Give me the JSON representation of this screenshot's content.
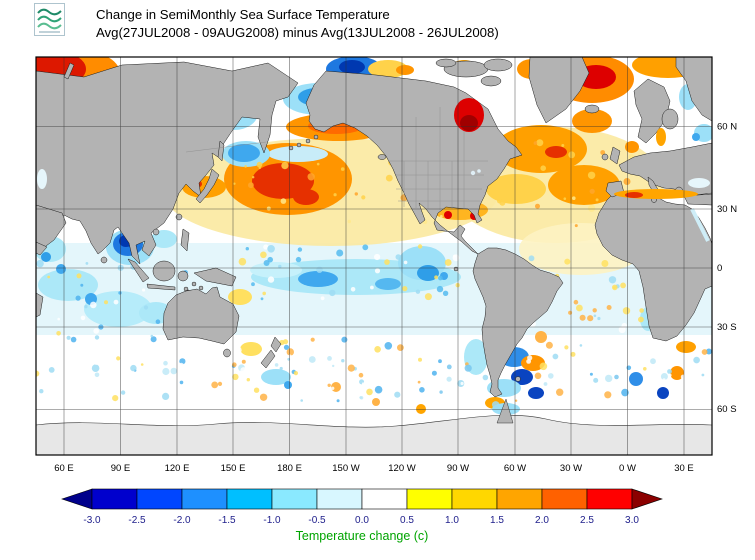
{
  "header": {
    "title_line1": "Change in SemiMonthly Sea Surface Temperature",
    "title_line2": "Avg(27JUL2008 - 09AUG2008) minus Avg(13JUL2008 - 26JUL2008)"
  },
  "map": {
    "land_color": "#b3b3b3",
    "nodata_color": "#e7e7e7",
    "lat_labels": [
      "60 N",
      "30 N",
      "0",
      "30 S",
      "60 S"
    ],
    "lon_labels": [
      "60 E",
      "90 E",
      "120 E",
      "150 E",
      "180 E",
      "150 W",
      "120 W",
      "90 W",
      "60 W",
      "30 W",
      "0 W",
      "30 E"
    ]
  },
  "colorbar": {
    "caption": "Temperature change (c)",
    "caption_color": "#00a400",
    "label_color": "#20208c",
    "labels": [
      "-3.0",
      "-2.5",
      "-2.0",
      "-1.5",
      "-1.0",
      "-0.5",
      "0.0",
      "0.5",
      "1.0",
      "1.5",
      "2.0",
      "2.5",
      "3.0"
    ],
    "left_arrow_color": "#00008b",
    "right_arrow_color": "#8b0000",
    "segment_colors": [
      "#0000cd",
      "#0046ff",
      "#1e90ff",
      "#00bfff",
      "#8ae9ff",
      "#d8f7ff",
      "#ffffff",
      "#ffff00",
      "#ffd700",
      "#ffa500",
      "#ff6100",
      "#ff0000"
    ]
  }
}
